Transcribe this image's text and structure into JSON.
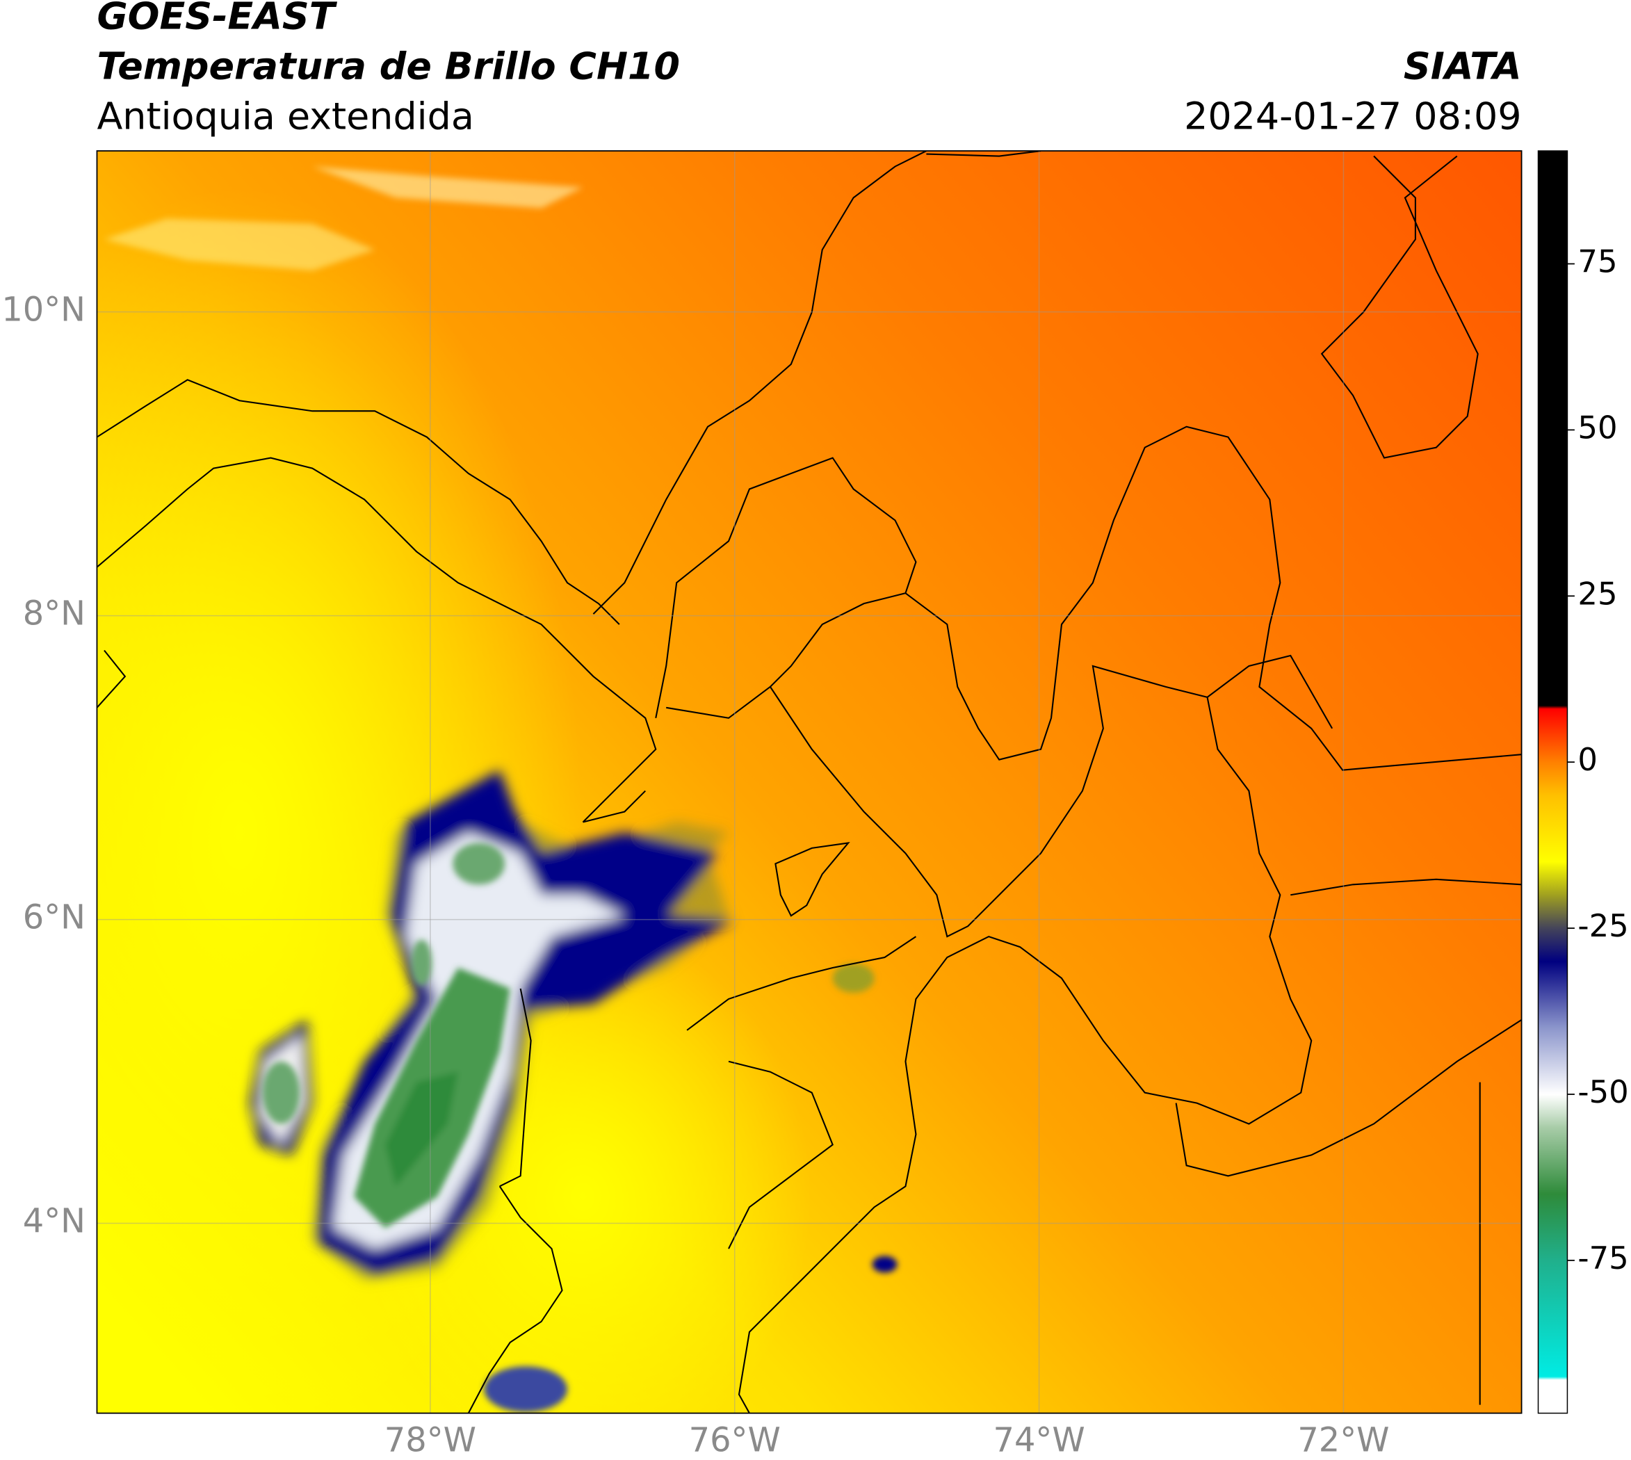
{
  "header": {
    "satellite": "GOES-EAST",
    "product": "Temperatura de Brillo CH10",
    "region": "Antioquia extendida",
    "source": "SIATA",
    "timestamp": "2024-01-27 08:09"
  },
  "map": {
    "xlim": [
      -80.19,
      -70.83
    ],
    "ylim": [
      2.75,
      11.06
    ],
    "xticks": [
      {
        "value": -78,
        "label": "78°W"
      },
      {
        "value": -76,
        "label": "76°W"
      },
      {
        "value": -74,
        "label": "74°W"
      },
      {
        "value": -72,
        "label": "72°W"
      }
    ],
    "yticks": [
      {
        "value": 4,
        "label": "4°N"
      },
      {
        "value": 6,
        "label": "6°N"
      },
      {
        "value": 8,
        "label": "8°N"
      },
      {
        "value": 10,
        "label": "10°N"
      }
    ],
    "grid": true
  },
  "colorbar": {
    "range": [
      -98,
      92
    ],
    "ticks": [
      -75,
      -50,
      -25,
      0,
      25,
      50,
      75
    ],
    "colors": [
      {
        "value": -98,
        "color": "#ffffff"
      },
      {
        "value": -93,
        "color": "#ffffff"
      },
      {
        "value": -92.5,
        "color": "#00ece4"
      },
      {
        "value": -75,
        "color": "#20b08c"
      },
      {
        "value": -65,
        "color": "#2e8b3a"
      },
      {
        "value": -55,
        "color": "#a8cca8"
      },
      {
        "value": -50,
        "color": "#ffffff"
      },
      {
        "value": -40,
        "color": "#8c96cc"
      },
      {
        "value": -30,
        "color": "#000080"
      },
      {
        "value": -25,
        "color": "#44445a"
      },
      {
        "value": -20,
        "color": "#a0a020"
      },
      {
        "value": -15,
        "color": "#ffff00"
      },
      {
        "value": -5,
        "color": "#ffc000"
      },
      {
        "value": 0,
        "color": "#ff8000"
      },
      {
        "value": 8,
        "color": "#ff0000"
      },
      {
        "value": 8.5,
        "color": "#000000"
      },
      {
        "value": 92,
        "color": "#000000"
      }
    ]
  }
}
